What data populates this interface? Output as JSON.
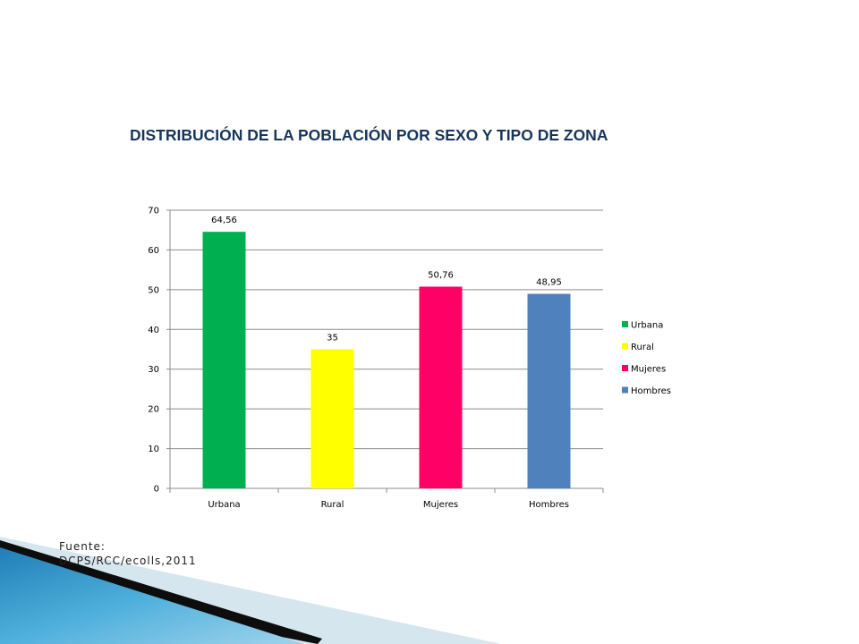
{
  "title": "DISTRIBUCIÓN DE LA POBLACIÓN POR SEXO Y TIPO DE ZONA",
  "source": {
    "line1": "Fuente:",
    "line2": "DCPS/RCC/ecolls,2011"
  },
  "chart_data": {
    "type": "bar",
    "title": "",
    "xlabel": "",
    "ylabel": "",
    "ylim": [
      0,
      70
    ],
    "yticks": [
      0,
      10,
      20,
      30,
      40,
      50,
      60,
      70
    ],
    "grid": true,
    "legend_position": "right",
    "categories": [
      "Urbana",
      "Rural",
      "Mujeres",
      "Hombres"
    ],
    "values": [
      64.56,
      35,
      50.76,
      48.95
    ],
    "value_labels": [
      "64,56",
      "35",
      "50,76",
      "48,95"
    ],
    "colors": [
      "#00b050",
      "#ffff00",
      "#ff0066",
      "#4f81bd"
    ],
    "legend": [
      "Urbana",
      "Rural",
      "Mujeres",
      "Hombres"
    ]
  }
}
